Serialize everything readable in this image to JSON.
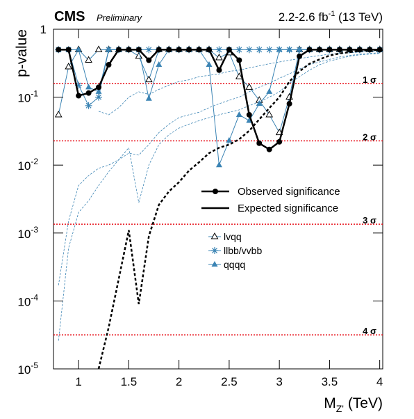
{
  "chart_data": {
    "type": "line",
    "title": "CMS",
    "subtitle": "Preliminary",
    "lumi": "2.2-2.6 fb",
    "lumi_sup": "-1",
    "energy": "(13 TeV)",
    "ylabel": "p-value",
    "xlabel": "M",
    "xlabel_sub": "Z'",
    "xlabel_unit": "(TeV)",
    "log_y": true,
    "xlim": [
      0.75,
      4.03
    ],
    "ylim": [
      1e-05,
      1
    ],
    "xticks": [
      1,
      1.5,
      2,
      2.5,
      3,
      3.5,
      4
    ],
    "yticks": [
      {
        "value": 1e-05,
        "label": "10",
        "sup": "-5"
      },
      {
        "value": 0.0001,
        "label": "10",
        "sup": "-4"
      },
      {
        "value": 0.001,
        "label": "10",
        "sup": "-3"
      },
      {
        "value": 0.01,
        "label": "10",
        "sup": "-2"
      },
      {
        "value": 0.1,
        "label": "10",
        "sup": "-1"
      },
      1
    ],
    "sigma_lines": [
      {
        "value": 0.1587,
        "label": "1 σ"
      },
      {
        "value": 0.02275,
        "label": "2 σ"
      },
      {
        "value": 0.00135,
        "label": "3 σ"
      },
      {
        "value": 3.17e-05,
        "label": "4 σ"
      }
    ],
    "sigma_color": "#e8101a",
    "x": [
      0.8,
      0.9,
      1.0,
      1.1,
      1.2,
      1.3,
      1.4,
      1.5,
      1.6,
      1.7,
      1.8,
      1.9,
      2.0,
      2.1,
      2.2,
      2.3,
      2.4,
      2.5,
      2.6,
      2.7,
      2.8,
      2.9,
      3.0,
      3.1,
      3.2,
      3.3,
      3.4,
      3.5,
      3.6,
      3.7,
      3.8,
      3.9,
      4.0
    ],
    "series": [
      {
        "name": "Observed significance",
        "color": "#000000",
        "marker": "circle",
        "style": "solid",
        "width": 2.5,
        "values": [
          0.5,
          0.5,
          0.105,
          0.115,
          0.14,
          0.3,
          0.5,
          0.5,
          0.5,
          0.35,
          0.5,
          0.5,
          0.5,
          0.5,
          0.5,
          0.5,
          0.25,
          0.5,
          0.35,
          0.055,
          0.021,
          0.017,
          0.022,
          0.08,
          0.4,
          0.5,
          0.5,
          0.5,
          0.5,
          0.5,
          0.5,
          0.5,
          0.5
        ]
      },
      {
        "name": "Expected significance",
        "color": "#000000",
        "marker": "none",
        "style": "dashed",
        "width": 2.5,
        "values": [
          null,
          null,
          null,
          null,
          1e-05,
          4.1e-05,
          0.00021,
          0.0011,
          9e-05,
          0.0009,
          0.0026,
          0.0041,
          0.0056,
          0.0083,
          0.011,
          0.015,
          0.018,
          0.02,
          0.024,
          0.032,
          0.047,
          0.069,
          0.1,
          0.17,
          0.24,
          0.31,
          0.36,
          0.41,
          0.44,
          0.46,
          0.48,
          0.49,
          0.5
        ]
      },
      {
        "name": "lvqq",
        "color": "#3b84b4",
        "marker": "open-triangle",
        "style": "solid",
        "width": 1,
        "values": [
          0.055,
          0.28,
          0.5,
          0.35,
          0.5,
          0.5,
          0.5,
          0.5,
          0.4,
          0.18,
          0.5,
          0.5,
          0.5,
          0.5,
          0.5,
          0.5,
          0.38,
          0.45,
          0.2,
          0.14,
          0.09,
          0.055,
          0.03,
          0.1,
          0.5,
          0.5,
          0.5,
          0.5,
          0.5,
          0.5,
          0.5,
          0.5,
          0.5
        ]
      },
      {
        "name": "llbb/vvbb",
        "color": "#3b84b4",
        "marker": "star",
        "style": "solid",
        "width": 1,
        "values": [
          0.5,
          0.5,
          0.15,
          0.075,
          0.1,
          0.5,
          0.5,
          0.5,
          0.5,
          0.5,
          0.5,
          0.5,
          0.5,
          0.5,
          0.5,
          0.5,
          0.5,
          0.5,
          0.5,
          0.5,
          0.5,
          0.5,
          0.5,
          0.5,
          0.5,
          0.5,
          0.5,
          0.5,
          0.5,
          0.5,
          0.5,
          0.5,
          0.5
        ]
      },
      {
        "name": "qqqq",
        "color": "#3b84b4",
        "marker": "filled-triangle",
        "style": "solid",
        "width": 1,
        "values": [
          0.5,
          0.5,
          0.5,
          0.14,
          0.12,
          0.5,
          0.5,
          0.5,
          0.5,
          0.095,
          0.3,
          0.5,
          0.5,
          0.5,
          0.5,
          0.3,
          0.01,
          0.023,
          0.055,
          0.045,
          0.08,
          0.12,
          0.5,
          0.5,
          0.5,
          0.5,
          0.5,
          0.5,
          0.5,
          0.5,
          0.5,
          0.5,
          0.5
        ]
      }
    ],
    "expected_channels": [
      {
        "color": "#3b84b4",
        "values": [
          null,
          null,
          null,
          null,
          0.062,
          0.055,
          0.07,
          0.1,
          0.12,
          0.11,
          0.13,
          0.15,
          0.17,
          0.18,
          0.2,
          0.21,
          0.22,
          0.24,
          0.25,
          0.27,
          0.29,
          0.31,
          0.33,
          0.35,
          0.37,
          0.39,
          0.41,
          0.43,
          0.44,
          0.45,
          0.46,
          0.47,
          0.48
        ]
      },
      {
        "color": "#3b84b4",
        "values": [
          0.00017,
          0.0015,
          0.005,
          0.007,
          0.009,
          0.01,
          0.012,
          0.015,
          0.014,
          0.02,
          0.03,
          0.04,
          0.05,
          0.055,
          0.06,
          0.07,
          0.08,
          0.09,
          0.1,
          0.12,
          0.14,
          0.16,
          0.19,
          0.22,
          0.26,
          0.3,
          0.33,
          0.36,
          0.39,
          0.41,
          0.43,
          0.44,
          0.45
        ]
      },
      {
        "color": "#3b84b4",
        "values": [
          2.6e-05,
          0.0006,
          0.002,
          0.003,
          0.005,
          0.008,
          0.012,
          0.018,
          0.0028,
          0.01,
          0.02,
          0.028,
          0.035,
          0.04,
          0.045,
          0.05,
          0.055,
          0.06,
          0.065,
          0.075,
          0.085,
          0.1,
          0.12,
          0.16,
          0.2,
          0.25,
          0.3,
          0.34,
          0.37,
          0.4,
          0.42,
          0.43,
          0.44
        ]
      }
    ]
  }
}
